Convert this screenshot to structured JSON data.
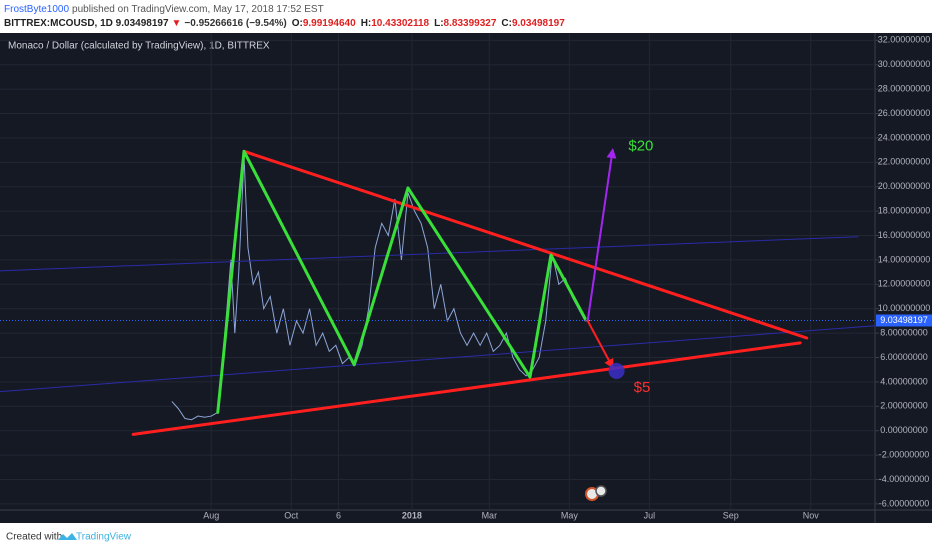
{
  "header": {
    "author": "FrostByte1000",
    "published": "published on TradingView.com, May 17, 2018 17:52 EST",
    "symbol": "BITTREX:MCOUSD, 1D 9.03498197",
    "arrow": "▼",
    "change": "−0.95266616 (−9.54%)",
    "ohlc": [
      {
        "label": "O:",
        "value": "9.99194640"
      },
      {
        "label": "H:",
        "value": "10.43302118"
      },
      {
        "label": "L:",
        "value": "8.83399327"
      },
      {
        "label": "C:",
        "value": "9.03498197"
      }
    ]
  },
  "footer": {
    "created": "Created with",
    "brand": "TradingView"
  },
  "chart_data": {
    "type": "line",
    "title": "Monaco / Dollar (calculated by TradingView), 1D, BITTREX",
    "grid": true,
    "xlim": [
      -161,
      506
    ],
    "ylim": [
      -6.5,
      32.6
    ],
    "xticks": [
      {
        "value": 0,
        "label": "Aug"
      },
      {
        "value": 61,
        "label": "Oct"
      },
      {
        "value": 97,
        "label": "6"
      },
      {
        "value": 153,
        "label": "2018"
      },
      {
        "value": 212,
        "label": "Mar"
      },
      {
        "value": 273,
        "label": "May"
      },
      {
        "value": 334,
        "label": "Jul"
      },
      {
        "value": 396,
        "label": "Sep"
      },
      {
        "value": 457,
        "label": "Nov"
      }
    ],
    "yticks": [
      {
        "value": 32,
        "label": "32.00000000"
      },
      {
        "value": 30,
        "label": "30.00000000"
      },
      {
        "value": 28,
        "label": "28.00000000"
      },
      {
        "value": 26,
        "label": "26.00000000"
      },
      {
        "value": 24,
        "label": "24.00000000"
      },
      {
        "value": 22,
        "label": "22.00000000"
      },
      {
        "value": 20,
        "label": "20.00000000"
      },
      {
        "value": 18,
        "label": "18.00000000"
      },
      {
        "value": 16,
        "label": "16.00000000"
      },
      {
        "value": 14,
        "label": "14.00000000"
      },
      {
        "value": 12,
        "label": "12.00000000"
      },
      {
        "value": 10,
        "label": "10.00000000"
      },
      {
        "value": 8,
        "label": "8.00000000"
      },
      {
        "value": 6,
        "label": "6.00000000"
      },
      {
        "value": 4,
        "label": "4.00000000"
      },
      {
        "value": 2,
        "label": "2.00000000"
      },
      {
        "value": 0,
        "label": "0.00000000"
      },
      {
        "value": -2,
        "label": "-2.00000000"
      },
      {
        "value": -4,
        "label": "-4.00000000"
      },
      {
        "value": -6,
        "label": "-6.00000000"
      }
    ],
    "x": [
      -30,
      -25,
      -20,
      -15,
      -10,
      -5,
      0,
      5,
      8,
      12,
      15,
      18,
      21,
      25,
      28,
      32,
      36,
      40,
      45,
      50,
      55,
      60,
      65,
      70,
      75,
      80,
      85,
      90,
      95,
      100,
      105,
      110,
      115,
      120,
      125,
      130,
      135,
      140,
      145,
      150,
      155,
      160,
      165,
      170,
      175,
      180,
      185,
      190,
      195,
      200,
      205,
      210,
      215,
      220,
      225,
      230,
      235,
      240,
      245,
      250,
      255,
      260,
      265,
      270,
      275,
      280,
      285,
      289
    ],
    "series": [
      {
        "color": "#8ea6d6",
        "values": [
          2.4,
          1.8,
          1.0,
          0.9,
          1.2,
          1.1,
          1.2,
          1.5,
          5,
          10,
          14,
          8,
          13,
          22.5,
          15,
          12,
          13,
          10,
          11,
          8,
          10,
          7,
          9,
          8,
          10,
          7,
          8,
          6.5,
          7,
          5.5,
          6,
          5.5,
          7,
          10,
          15,
          17,
          16,
          19,
          14,
          19.5,
          18,
          17,
          15,
          10,
          12,
          9,
          10,
          8,
          7,
          8,
          7,
          8,
          6.5,
          7,
          8,
          6,
          5,
          4.5,
          5,
          6,
          9,
          14.5,
          12,
          12.5,
          11,
          10,
          9,
          9.03498197
        ]
      }
    ],
    "last_price": {
      "value": 9.03498197,
      "label": "9.03498197",
      "color": "#2962ff"
    },
    "drawings": [
      {
        "kind": "line",
        "color": "#2b2ba8",
        "width": 1,
        "x": [
          -161,
          493
        ],
        "y": [
          13.1,
          15.9
        ]
      },
      {
        "kind": "line",
        "color": "#2b2ba8",
        "width": 1,
        "x": [
          -161,
          506
        ],
        "y": [
          3.2,
          8.6
        ]
      },
      {
        "kind": "line",
        "color": "#ff1f1f",
        "width": 3,
        "x": [
          25,
          454
        ],
        "y": [
          22.9,
          7.6
        ]
      },
      {
        "kind": "line",
        "color": "#ff1f1f",
        "width": 3,
        "x": [
          -59.5,
          449
        ],
        "y": [
          -0.3,
          7.2
        ]
      },
      {
        "kind": "line",
        "color": "#3ae03a",
        "width": 3,
        "x": [
          5,
          25,
          109,
          150,
          243,
          259,
          285
        ],
        "y": [
          1.5,
          22.9,
          5.4,
          19.9,
          4.4,
          14.4,
          9.2
        ]
      },
      {
        "kind": "arrow",
        "color": "#a326f0",
        "width": 2,
        "x": [
          287,
          306
        ],
        "y": [
          9,
          23.0
        ]
      },
      {
        "kind": "arrow",
        "color": "#ff1f1f",
        "width": 2,
        "x": [
          287,
          306
        ],
        "y": [
          9,
          5.2
        ]
      },
      {
        "kind": "circle",
        "color": "#3a2fc8",
        "x": [
          309
        ],
        "y": [
          4.9
        ]
      },
      {
        "kind": "text",
        "color": "#3ae03a",
        "text": "$20",
        "x": [
          318
        ],
        "y": [
          23.3
        ]
      },
      {
        "kind": "text",
        "color": "#ff3030",
        "text": "$5",
        "x": [
          322
        ],
        "y": [
          3.5
        ]
      }
    ]
  }
}
